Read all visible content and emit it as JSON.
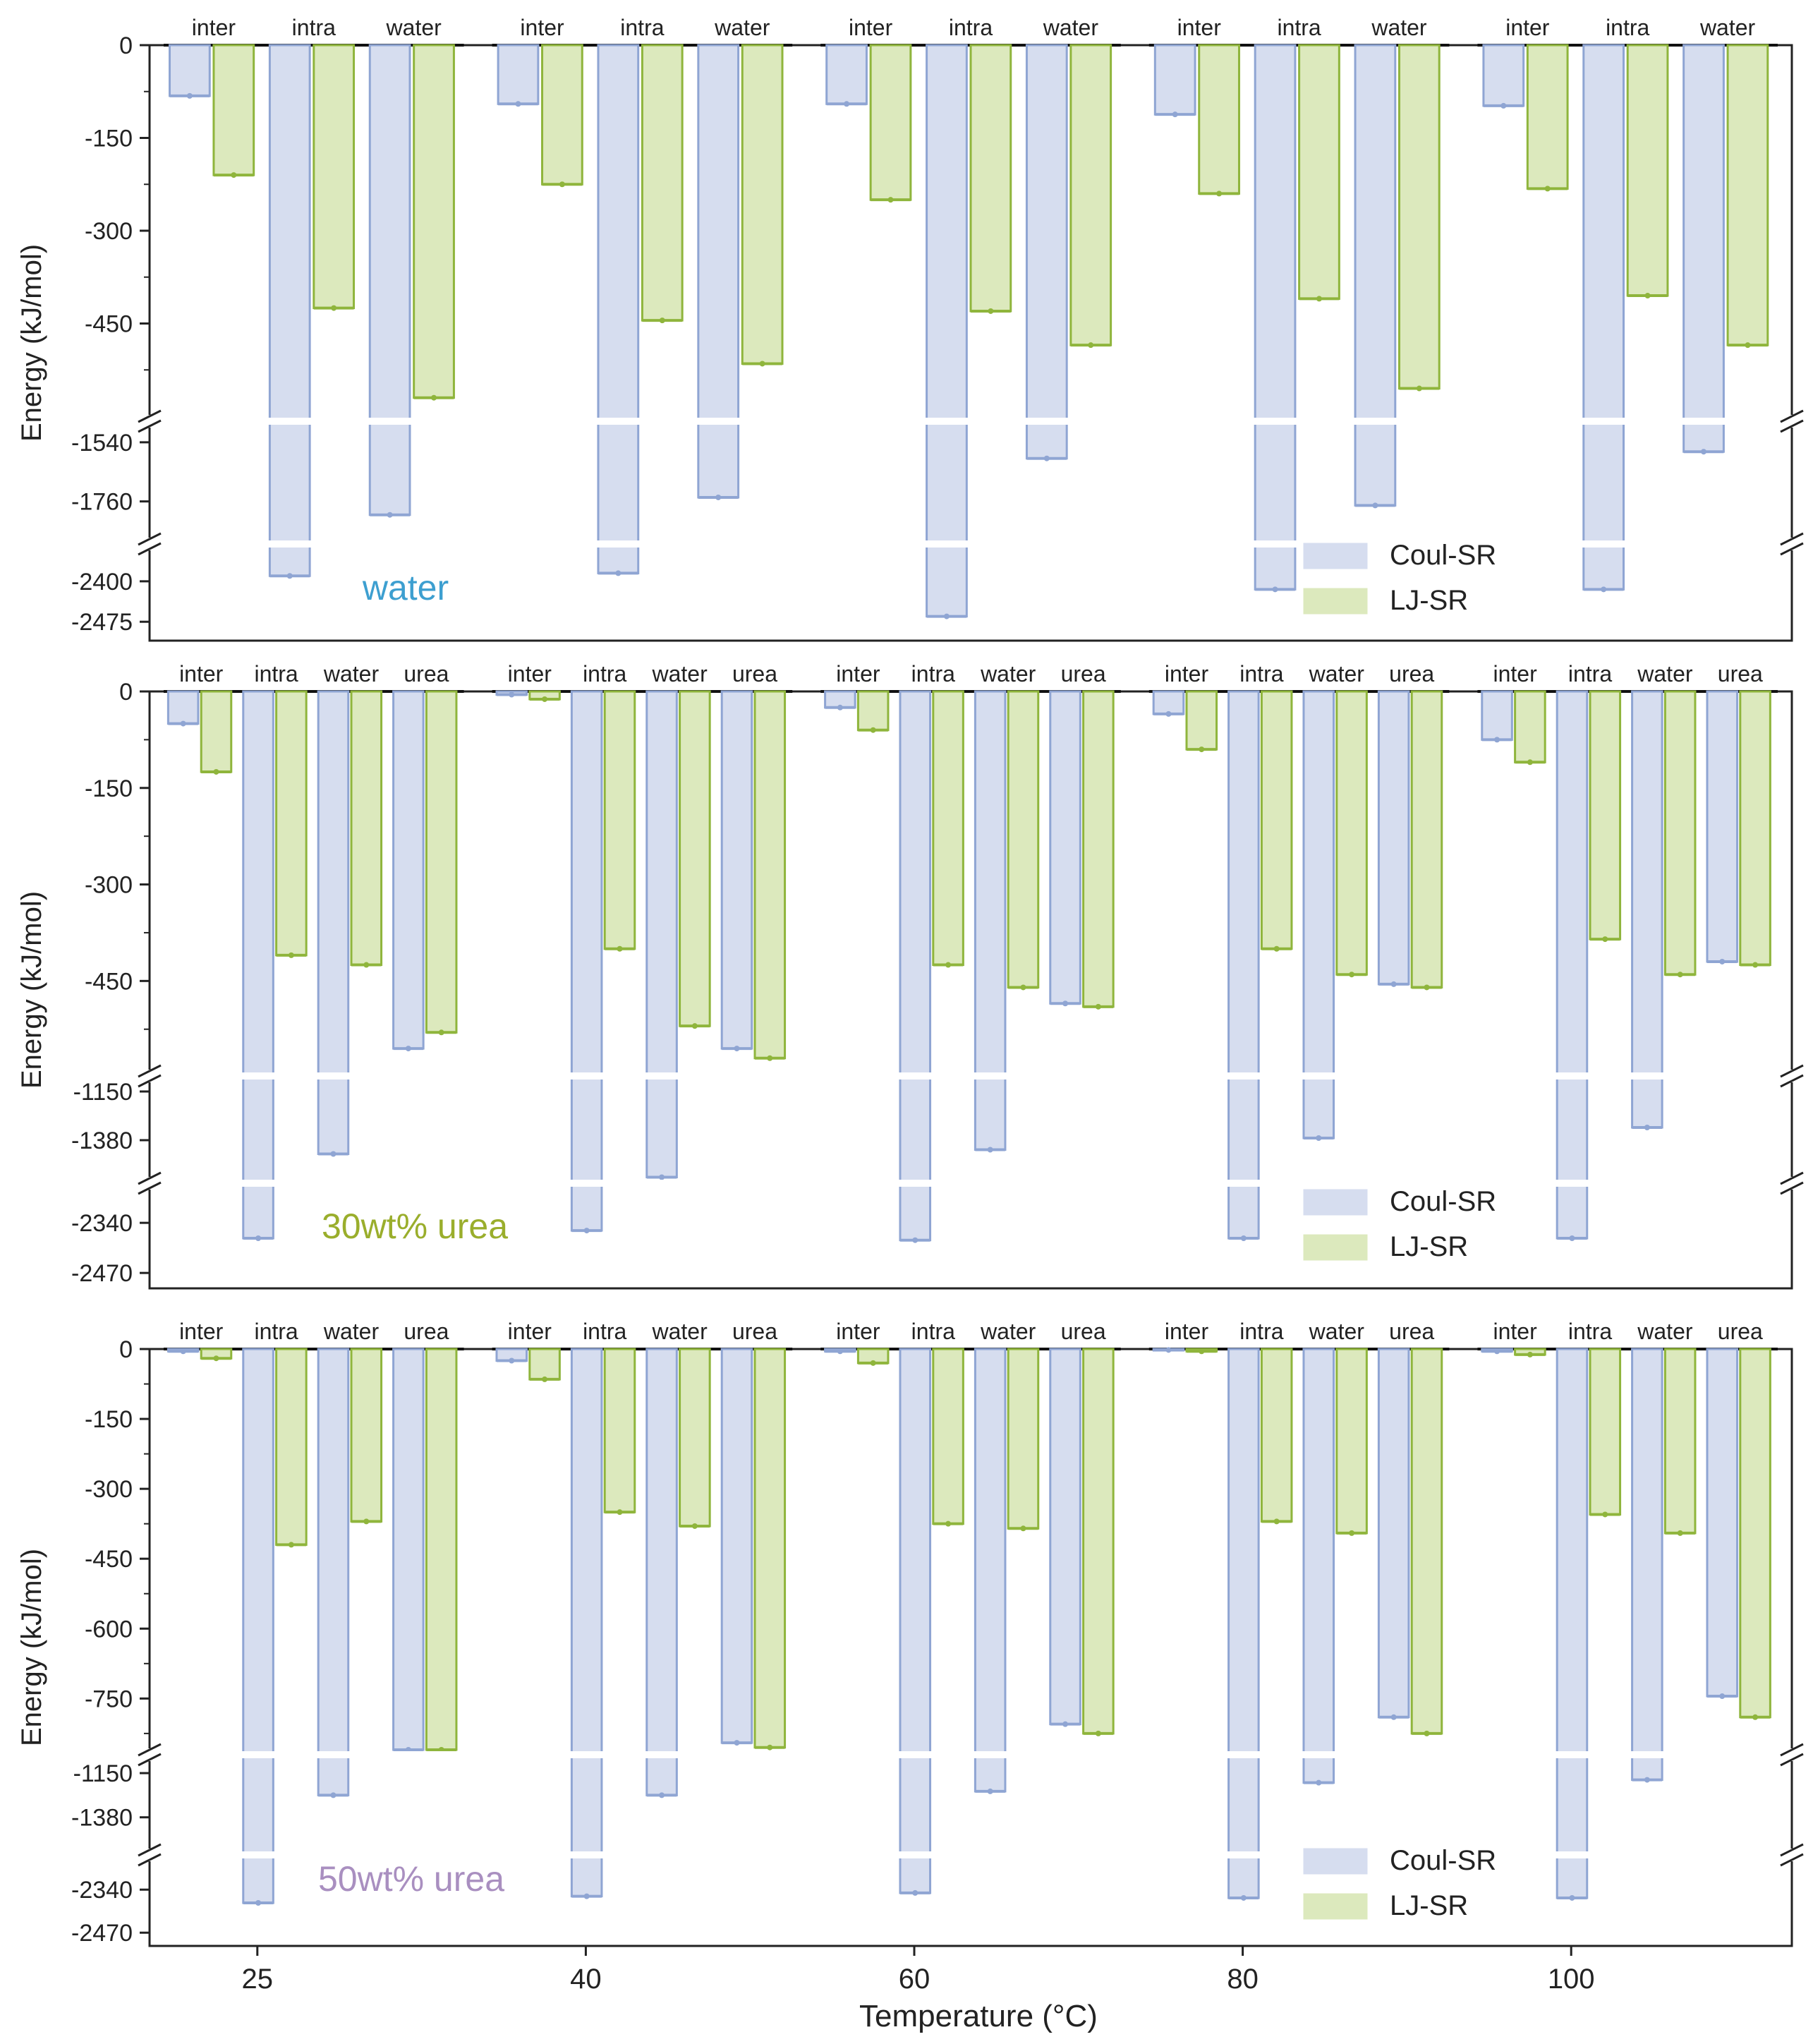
{
  "figure": {
    "xlabel": "Temperature (°C)",
    "ylabel": "Energy (kJ/mol)",
    "x_ticks": [
      "25",
      "40",
      "60",
      "80",
      "100"
    ]
  },
  "legend": {
    "coul": "Coul-SR",
    "lj": "LJ-SR"
  },
  "colors": {
    "coul_fill": "#d6ddef",
    "coul_edge": "#8fa5d3",
    "lj_fill": "#dce9bd",
    "lj_edge": "#8fb53c",
    "water_label": "#3d9fd0",
    "urea30_label": "#9aae2c",
    "urea50_label": "#a98fc0"
  },
  "chart_data": [
    {
      "type": "bar",
      "title": "water",
      "xlabel": "Temperature (°C)",
      "ylabel": "Energy (kJ/mol)",
      "temperatures": [
        "25",
        "40",
        "60",
        "80",
        "100"
      ],
      "groups": [
        "inter",
        "intra",
        "water"
      ],
      "axis_segments": [
        {
          "range": [
            0,
            -600
          ],
          "ticks": [
            0,
            -150,
            -300,
            -450
          ]
        },
        {
          "range": [
            -1480,
            -1900
          ],
          "ticks": [
            -1540,
            -1760
          ]
        },
        {
          "range": [
            -2340,
            -2510
          ],
          "ticks": [
            -2400,
            -2475
          ]
        }
      ],
      "series": [
        {
          "name": "Coul-SR",
          "values": [
            [
              -82,
              -2390,
              -1810
            ],
            [
              -95,
              -2385,
              -1745
            ],
            [
              -95,
              -2465,
              -1600
            ],
            [
              -112,
              -2415,
              -1775
            ],
            [
              -98,
              -2415,
              -1575
            ]
          ]
        },
        {
          "name": "LJ-SR",
          "values": [
            [
              -210,
              -425,
              -570
            ],
            [
              -225,
              -445,
              -515
            ],
            [
              -250,
              -430,
              -485
            ],
            [
              -240,
              -410,
              -555
            ],
            [
              -232,
              -405,
              -485
            ]
          ]
        }
      ],
      "annotation": "water"
    },
    {
      "type": "bar",
      "title": "30wt% urea",
      "xlabel": "Temperature (°C)",
      "ylabel": "Energy (kJ/mol)",
      "temperatures": [
        "25",
        "40",
        "60",
        "80",
        "100"
      ],
      "groups": [
        "inter",
        "intra",
        "water",
        "urea"
      ],
      "axis_segments": [
        {
          "range": [
            0,
            -590
          ],
          "ticks": [
            0,
            -150,
            -300,
            -450
          ]
        },
        {
          "range": [
            -1100,
            -1560
          ],
          "ticks": [
            -1150,
            -1380
          ]
        },
        {
          "range": [
            -2250,
            -2510
          ],
          "ticks": [
            -2340,
            -2470
          ]
        }
      ],
      "series": [
        {
          "name": "Coul-SR",
          "values": [
            [
              -50,
              -2380,
              -1445,
              -555
            ],
            [
              -5,
              -2360,
              -1555,
              -555
            ],
            [
              -25,
              -2385,
              -1425,
              -485
            ],
            [
              -35,
              -2380,
              -1370,
              -455
            ],
            [
              -75,
              -2380,
              -1320,
              -420
            ]
          ]
        },
        {
          "name": "LJ-SR",
          "values": [
            [
              -125,
              -410,
              -425,
              -530
            ],
            [
              -12,
              -400,
              -520,
              -570
            ],
            [
              -60,
              -425,
              -460,
              -490
            ],
            [
              -90,
              -400,
              -440,
              -460
            ],
            [
              -110,
              -385,
              -440,
              -425
            ]
          ]
        }
      ],
      "annotation": "30wt% urea"
    },
    {
      "type": "bar",
      "title": "50wt% urea",
      "xlabel": "Temperature (°C)",
      "ylabel": "Energy (kJ/mol)",
      "temperatures": [
        "25",
        "40",
        "60",
        "80",
        "100"
      ],
      "groups": [
        "inter",
        "intra",
        "water",
        "urea"
      ],
      "axis_segments": [
        {
          "range": [
            0,
            -860
          ],
          "ticks": [
            0,
            -150,
            -300,
            -450,
            -600,
            -750
          ]
        },
        {
          "range": [
            -1080,
            -1550
          ],
          "ticks": [
            -1150,
            -1380
          ]
        },
        {
          "range": [
            -2250,
            -2510
          ],
          "ticks": [
            -2340,
            -2470
          ]
        }
      ],
      "series": [
        {
          "name": "Coul-SR",
          "values": [
            [
              -5,
              -2380,
              -1265,
              -860
            ],
            [
              -25,
              -2360,
              -1265,
              -845
            ],
            [
              -5,
              -2350,
              -1245,
              -805
            ],
            [
              -2,
              -2365,
              -1200,
              -790
            ],
            [
              -5,
              -2365,
              -1185,
              -745
            ]
          ]
        },
        {
          "name": "LJ-SR",
          "values": [
            [
              -20,
              -420,
              -370,
              -860
            ],
            [
              -65,
              -350,
              -380,
              -855
            ],
            [
              -30,
              -375,
              -385,
              -825
            ],
            [
              -5,
              -370,
              -395,
              -825
            ],
            [
              -12,
              -355,
              -395,
              -790
            ]
          ]
        }
      ],
      "annotation": "50wt% urea"
    }
  ]
}
